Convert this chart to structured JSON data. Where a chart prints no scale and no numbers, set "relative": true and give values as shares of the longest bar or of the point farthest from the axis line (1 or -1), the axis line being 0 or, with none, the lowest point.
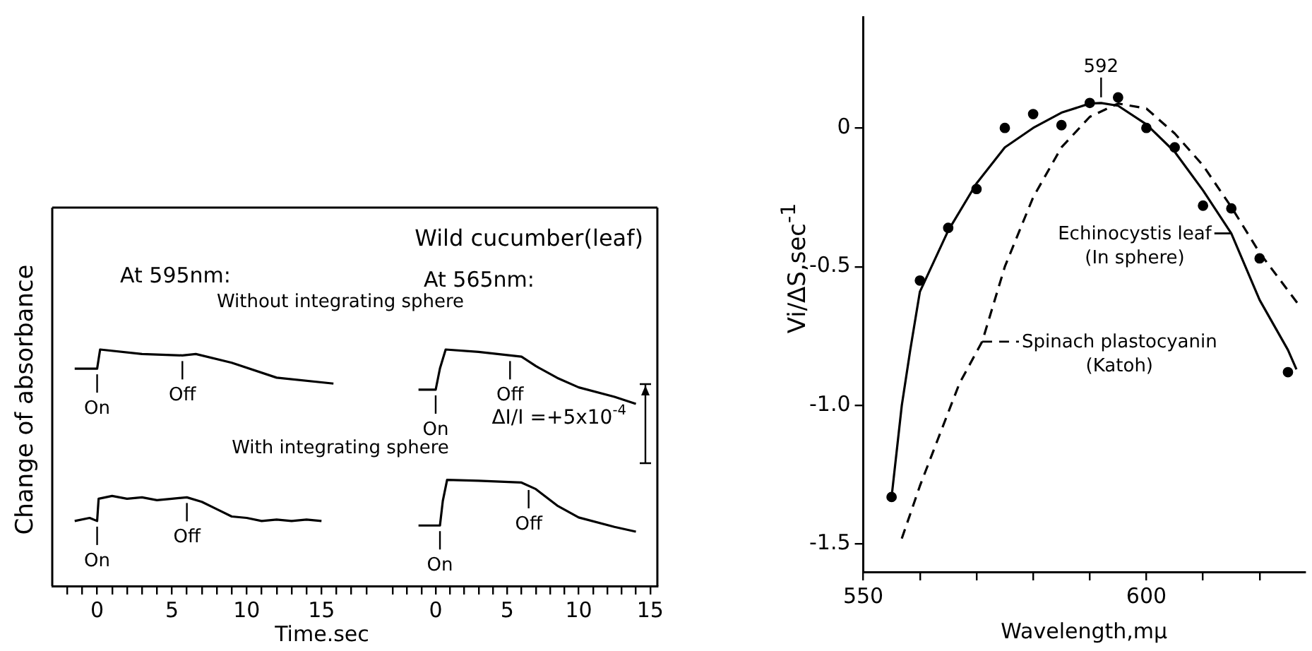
{
  "chart_data": [
    {
      "type": "line",
      "title": "At 595nm:",
      "ylabel": "Change of absorbance",
      "xlabel": "Time.sec",
      "relative": true,
      "tick_labels": "x",
      "xlim": [
        -3,
        19
      ],
      "xticks": [
        {
          "value": -2,
          "label": null
        },
        {
          "value": -1,
          "label": null
        },
        0,
        {
          "value": 1,
          "label": null
        },
        {
          "value": 2,
          "label": null
        },
        {
          "value": 3,
          "label": null
        },
        {
          "value": 4,
          "label": null
        },
        5,
        {
          "value": 6,
          "label": null
        },
        {
          "value": 7,
          "label": null
        },
        {
          "value": 8,
          "label": null
        },
        {
          "value": 9,
          "label": null
        },
        10,
        {
          "value": 11,
          "label": null
        },
        {
          "value": 12,
          "label": null
        },
        {
          "value": 13,
          "label": null
        },
        {
          "value": 14,
          "label": null
        },
        15,
        {
          "value": 16,
          "label": null
        },
        {
          "value": 17,
          "label": null
        },
        {
          "value": 18,
          "label": null
        }
      ],
      "series": [
        {
          "name": "Without integrating sphere",
          "color": "#000000",
          "x": [
            -1.5,
            0,
            0.2,
            3,
            5.7,
            6.6,
            9,
            12,
            15.8
          ],
          "values": [
            0.919,
            0.919,
            1,
            0.981,
            0.975,
            0.981,
            0.944,
            0.881,
            0.856
          ]
        },
        {
          "name": "With integrating sphere",
          "color": "#000000",
          "x": [
            -1.5,
            -0.5,
            0,
            0.1,
            1,
            2,
            3,
            4,
            5,
            6,
            7,
            8,
            9,
            10,
            11,
            12,
            13,
            14,
            15
          ],
          "values": [
            0.275,
            0.288,
            0.275,
            0.369,
            0.381,
            0.369,
            0.375,
            0.363,
            0.369,
            0.375,
            0.356,
            0.325,
            0.294,
            0.288,
            0.275,
            0.281,
            0.275,
            0.281,
            0.275
          ]
        }
      ],
      "annotations": [
        {
          "text": "On",
          "x": 0,
          "y": 0.919
        },
        {
          "text": "Off",
          "x": 5.7,
          "y": 0.975
        },
        {
          "text": "On",
          "x": 0,
          "y": 0.275
        },
        {
          "text": "Off",
          "x": 6,
          "y": 0.375
        }
      ]
    },
    {
      "type": "line",
      "title": "Wild cucumber(leaf)",
      "subtitle": "At 565nm:",
      "relative": true,
      "tick_labels": "x",
      "xlim": [
        -3.8,
        15.5
      ],
      "xticks": [
        {
          "value": -3,
          "label": null
        },
        {
          "value": -2,
          "label": null
        },
        {
          "value": -1,
          "label": null
        },
        0,
        {
          "value": 1,
          "label": null
        },
        {
          "value": 2,
          "label": null
        },
        {
          "value": 3,
          "label": null
        },
        {
          "value": 4,
          "label": null
        },
        5,
        {
          "value": 6,
          "label": null
        },
        {
          "value": 7,
          "label": null
        },
        {
          "value": 8,
          "label": null
        },
        {
          "value": 9,
          "label": null
        },
        10,
        {
          "value": 11,
          "label": null
        },
        {
          "value": 12,
          "label": null
        },
        {
          "value": 13,
          "label": null
        },
        {
          "value": 14,
          "label": null
        },
        15
      ],
      "series": [
        {
          "color": "#000000",
          "x": [
            -1.2,
            0,
            0.3,
            0.7,
            3,
            6,
            7,
            8.5,
            10,
            12.5,
            14
          ],
          "values": [
            0.83,
            0.83,
            0.92,
            1,
            0.99,
            0.97,
            0.93,
            0.88,
            0.84,
            0.8,
            0.77
          ]
        },
        {
          "color": "#000000",
          "x": [
            -1.2,
            0.3,
            0.5,
            0.8,
            3,
            6,
            7,
            8.5,
            10,
            12.5,
            14
          ],
          "values": [
            0.256,
            0.256,
            0.36,
            0.449,
            0.445,
            0.4375,
            0.41,
            0.34,
            0.29,
            0.25,
            0.23
          ]
        }
      ],
      "annotations": [
        {
          "text": "On",
          "x": 0,
          "y": 0.83
        },
        {
          "text": "Off",
          "x": 5.2,
          "y": 0.975
        },
        {
          "text": "On",
          "x": 0.3,
          "y": 0.256
        },
        {
          "text": "Off",
          "x": 6.5,
          "y": 0.43
        },
        "ΔI/I =+5x10$^{-4}$"
      ]
    },
    {
      "type": "line",
      "xlabel": "Wavelength,mμ",
      "ylabel": "Vi/ΔS,sec$^{-1}$",
      "xlim": [
        550,
        628
      ],
      "ylim": [
        -1.6,
        0.4
      ],
      "xticks": [
        550,
        {
          "value": 560,
          "label": null
        },
        {
          "value": 570,
          "label": null
        },
        {
          "value": 580,
          "label": null
        },
        {
          "value": 590,
          "label": null
        },
        600,
        {
          "value": 610,
          "label": null
        },
        {
          "value": 620,
          "label": null
        }
      ],
      "yticks": [
        {
          "value": -1.5,
          "label": "-1.5"
        },
        {
          "value": -1,
          "label": "-1.0"
        },
        -0.5,
        0
      ],
      "series": [
        {
          "type": "scatter",
          "marker": "circle",
          "color": "#000000",
          "x": [
            555,
            560,
            565,
            570,
            575,
            580,
            585,
            590,
            595,
            600,
            605,
            610,
            615,
            620,
            625
          ],
          "values": [
            -1.33,
            -0.55,
            -0.36,
            -0.22,
            0.0,
            0.05,
            0.01,
            0.09,
            0.11,
            0.0,
            -0.07,
            -0.28,
            -0.29,
            -0.47,
            -0.88
          ]
        },
        {
          "name": "Echinocystis leaf (In sphere)",
          "color": "#000000",
          "x": [
            555,
            556.8,
            558.3,
            560,
            565,
            570,
            575,
            580,
            585,
            590,
            592,
            595,
            600,
            605,
            610,
            615,
            620,
            625,
            626.5
          ],
          "values": [
            -1.33,
            -1.0,
            -0.8,
            -0.59,
            -0.37,
            -0.2,
            -0.07,
            0.0,
            0.055,
            0.088,
            0.09,
            0.08,
            0.013,
            -0.086,
            -0.225,
            -0.38,
            -0.62,
            -0.8,
            -0.87
          ]
        },
        {
          "name": "Spinach plastocyanin (Katoh)",
          "line_style": "dashed",
          "color": "#000000",
          "x": [
            556.8,
            560,
            563.4,
            567,
            571,
            575,
            580,
            585,
            590,
            595,
            600,
            605,
            610,
            615,
            620,
            627
          ],
          "values": [
            -1.48,
            -1.29,
            -1.11,
            -0.92,
            -0.77,
            -0.5,
            -0.25,
            -0.07,
            0.04,
            0.088,
            0.07,
            -0.02,
            -0.135,
            -0.285,
            -0.45,
            -0.64
          ]
        }
      ],
      "annotations": [
        {
          "text": "592",
          "x": 592,
          "y": 0.09
        }
      ]
    }
  ]
}
